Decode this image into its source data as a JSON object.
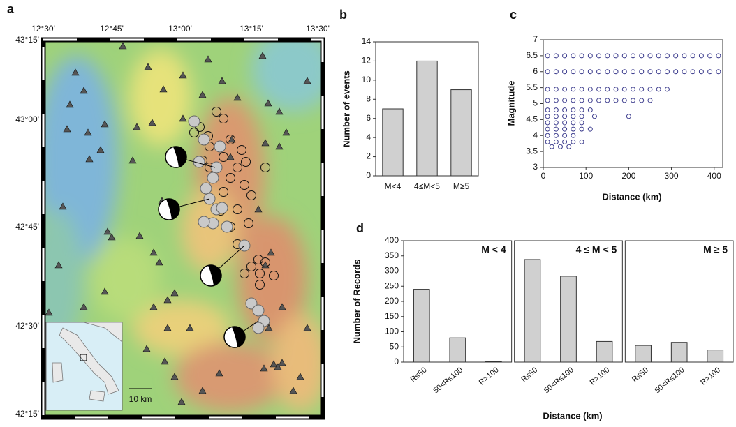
{
  "map": {
    "label": "a",
    "lon_ticks": [
      "12°30'",
      "12°45'",
      "13°00'",
      "13°15'",
      "13°30'"
    ],
    "lat_ticks": [
      "43°15'",
      "43°00'",
      "42°45'",
      "42°30'",
      "42°15'"
    ],
    "scale": "10 km"
  },
  "chart_data": [
    {
      "type": "bar",
      "label": "b",
      "y_label": "Number of events",
      "categories": [
        "M<4",
        "4≤M<5",
        "M≥5"
      ],
      "values": [
        7,
        12,
        9
      ],
      "color": "#d0d0d0",
      "ylim": [
        0,
        14
      ],
      "yticks": [
        0,
        2,
        4,
        6,
        8,
        10,
        12,
        14
      ]
    },
    {
      "type": "scatter",
      "label": "c",
      "x_label": "Distance (km)",
      "y_label": "Magnitude",
      "color": "#3a3a8c",
      "x": [
        10,
        30,
        50,
        70,
        90,
        110,
        130,
        150,
        170,
        190,
        210,
        230,
        250,
        270,
        290,
        310,
        330,
        350,
        370,
        390,
        410,
        10,
        30,
        50,
        70,
        90,
        110,
        130,
        150,
        170,
        190,
        210,
        230,
        250,
        270,
        290,
        310,
        330,
        350,
        370,
        390,
        410,
        10,
        30,
        50,
        70,
        90,
        110,
        130,
        150,
        170,
        190,
        210,
        230,
        250,
        270,
        290,
        10,
        30,
        50,
        70,
        90,
        110,
        130,
        150,
        170,
        190,
        210,
        230,
        250,
        10,
        30,
        50,
        70,
        90,
        110,
        10,
        30,
        50,
        70,
        90,
        120,
        200,
        10,
        30,
        50,
        70,
        90,
        10,
        30,
        50,
        70,
        90,
        110,
        10,
        30,
        50,
        70,
        10,
        30,
        50,
        70,
        90,
        20,
        40,
        60
      ],
      "y": [
        6.5,
        6.5,
        6.5,
        6.5,
        6.5,
        6.5,
        6.5,
        6.5,
        6.5,
        6.5,
        6.5,
        6.5,
        6.5,
        6.5,
        6.5,
        6.5,
        6.5,
        6.5,
        6.5,
        6.5,
        6.5,
        6,
        6,
        6,
        6,
        6,
        6,
        6,
        6,
        6,
        6,
        6,
        6,
        6,
        6,
        6,
        6,
        6,
        6,
        6,
        6,
        6,
        5.45,
        5.45,
        5.45,
        5.45,
        5.45,
        5.45,
        5.45,
        5.45,
        5.45,
        5.45,
        5.45,
        5.45,
        5.45,
        5.45,
        5.45,
        5.1,
        5.1,
        5.1,
        5.1,
        5.1,
        5.1,
        5.1,
        5.1,
        5.1,
        5.1,
        5.1,
        5.1,
        5.1,
        4.8,
        4.8,
        4.8,
        4.8,
        4.8,
        4.8,
        4.6,
        4.6,
        4.6,
        4.6,
        4.6,
        4.6,
        4.6,
        4.4,
        4.4,
        4.4,
        4.4,
        4.4,
        4.2,
        4.2,
        4.2,
        4.2,
        4.2,
        4.2,
        4,
        4,
        4,
        4,
        3.8,
        3.8,
        3.8,
        3.8,
        3.8,
        3.65,
        3.65,
        3.65
      ],
      "xlim": [
        0,
        420
      ],
      "xticks": [
        0,
        100,
        200,
        300,
        400
      ],
      "ylim": [
        3,
        7
      ],
      "yticks": [
        3,
        3.5,
        4,
        4.5,
        5,
        5.5,
        6,
        6.5,
        7
      ]
    },
    {
      "type": "bar-panels",
      "label": "d",
      "x_label": "Distance (km)",
      "y_label": "Number of Records",
      "categories": [
        "R≤50",
        "50<R≤100",
        "R>100"
      ],
      "color": "#d0d0d0",
      "panels": [
        {
          "title": "M < 4",
          "values": [
            240,
            80,
            2
          ]
        },
        {
          "title": "4 ≤ M < 5",
          "values": [
            338,
            283,
            68
          ]
        },
        {
          "title": "M ≥ 5",
          "values": [
            55,
            65,
            40
          ]
        }
      ],
      "ylim": [
        0,
        400
      ],
      "yticks": [
        0,
        50,
        100,
        150,
        200,
        250,
        300,
        350,
        400
      ]
    }
  ]
}
